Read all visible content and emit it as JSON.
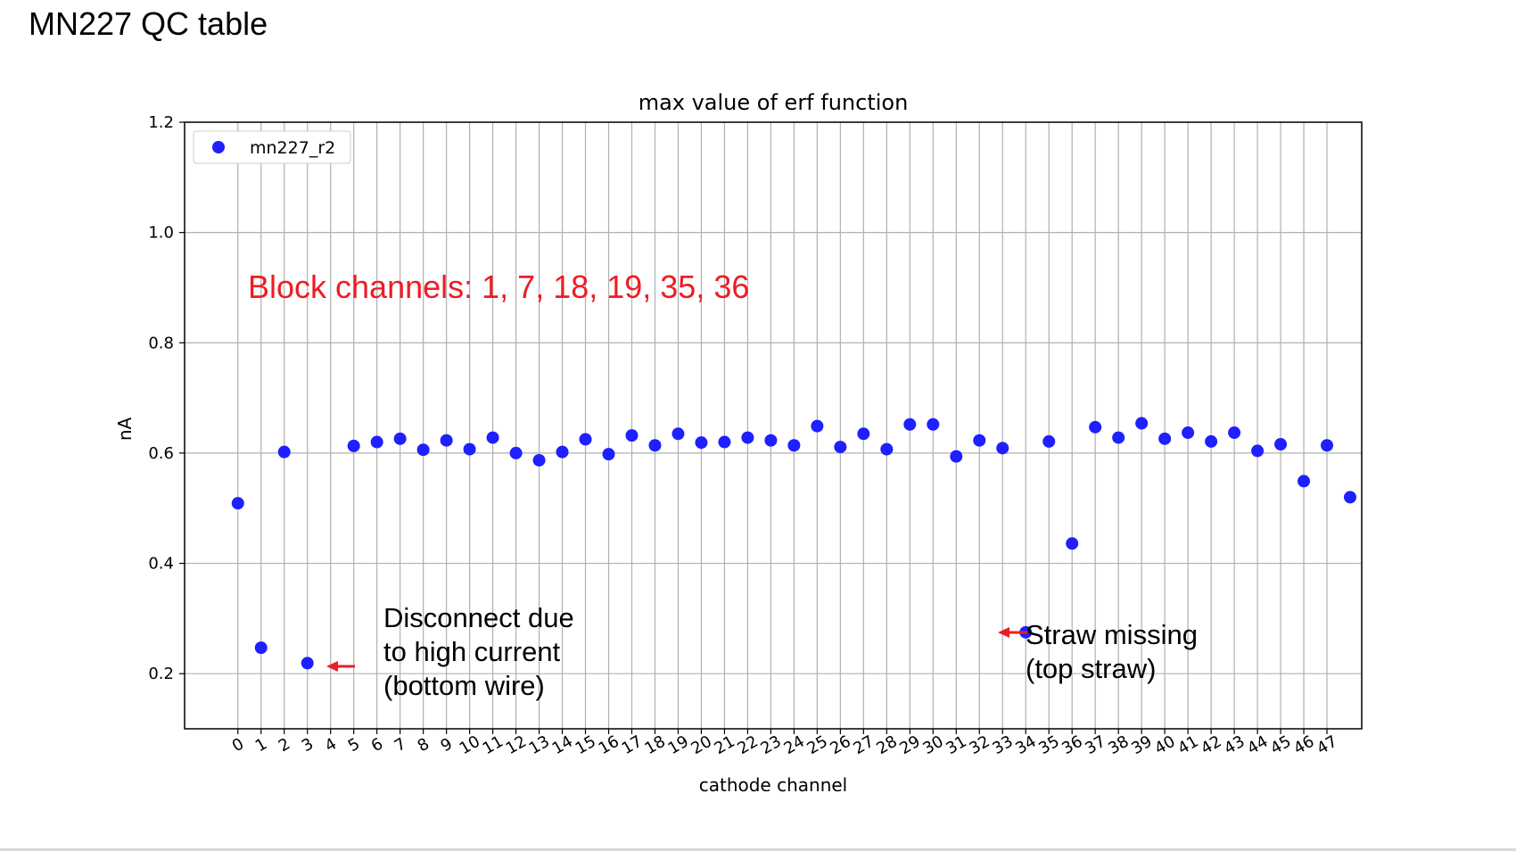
{
  "slide": {
    "title": "MN227 QC table"
  },
  "chart_data": {
    "type": "scatter",
    "title": "max value of erf function",
    "xlabel": "cathode channel",
    "ylabel": "nA",
    "xlim": [
      -2.3,
      48.5
    ],
    "ylim": [
      0.1,
      1.2
    ],
    "y_ticks": [
      0.2,
      0.4,
      0.6,
      0.8,
      1.0,
      1.2
    ],
    "y_tick_labels": [
      "0.2",
      "0.4",
      "0.6",
      "0.8",
      "1.0",
      "1.2"
    ],
    "x": [
      0,
      1,
      2,
      3,
      4,
      5,
      6,
      7,
      8,
      9,
      10,
      11,
      12,
      13,
      14,
      15,
      16,
      17,
      18,
      19,
      20,
      21,
      22,
      23,
      24,
      25,
      26,
      27,
      28,
      29,
      30,
      31,
      32,
      33,
      34,
      35,
      36,
      37,
      38,
      39,
      40,
      41,
      42,
      43,
      44,
      45,
      46,
      47
    ],
    "x_tick_labels": [
      "0",
      "1",
      "2",
      "3",
      "4",
      "5",
      "6",
      "7",
      "8",
      "9",
      "10",
      "11",
      "12",
      "13",
      "14",
      "15",
      "16",
      "17",
      "18",
      "19",
      "20",
      "21",
      "22",
      "23",
      "24",
      "25",
      "26",
      "27",
      "28",
      "29",
      "30",
      "31",
      "32",
      "33",
      "34",
      "35",
      "36",
      "37",
      "38",
      "39",
      "40",
      "41",
      "42",
      "43",
      "44",
      "45",
      "46",
      "47"
    ],
    "grid": true,
    "legend_position": "top-left",
    "marker_color": "#1f1fff",
    "series": [
      {
        "name": "mn227_r2",
        "points": [
          [
            0,
            0.509
          ],
          [
            1,
            0.247
          ],
          [
            2,
            0.602
          ],
          [
            3,
            0.219
          ],
          [
            5,
            0.613
          ],
          [
            6,
            0.62
          ],
          [
            7,
            0.626
          ],
          [
            8,
            0.606
          ],
          [
            9,
            0.623
          ],
          [
            10,
            0.607
          ],
          [
            11,
            0.628
          ],
          [
            12,
            0.6
          ],
          [
            13,
            0.587
          ],
          [
            14,
            0.602
          ],
          [
            15,
            0.625
          ],
          [
            16,
            0.598
          ],
          [
            17,
            0.632
          ],
          [
            18,
            0.614
          ],
          [
            19,
            0.635
          ],
          [
            20,
            0.619
          ],
          [
            21,
            0.62
          ],
          [
            22,
            0.628
          ],
          [
            23,
            0.623
          ],
          [
            24,
            0.614
          ],
          [
            25,
            0.649
          ],
          [
            26,
            0.611
          ],
          [
            27,
            0.635
          ],
          [
            28,
            0.607
          ],
          [
            29,
            0.652
          ],
          [
            30,
            0.652
          ],
          [
            31,
            0.594
          ],
          [
            32,
            0.623
          ],
          [
            33,
            0.609
          ],
          [
            34,
            0.275
          ],
          [
            35,
            0.621
          ],
          [
            36,
            0.436
          ],
          [
            37,
            0.647
          ],
          [
            38,
            0.628
          ],
          [
            39,
            0.654
          ],
          [
            40,
            0.626
          ],
          [
            41,
            0.637
          ],
          [
            42,
            0.621
          ],
          [
            43,
            0.637
          ],
          [
            44,
            0.604
          ],
          [
            45,
            0.616
          ],
          [
            46,
            0.549
          ],
          [
            47,
            0.614
          ],
          [
            48,
            0.52
          ]
        ]
      }
    ],
    "annotations": {
      "block_channels": "Block channels: 1, 7, 18, 19, 35, 36",
      "disconnect": [
        "Disconnect due",
        "to high current",
        "(bottom wire)"
      ],
      "straw_missing": [
        "Straw missing",
        "(top straw)"
      ],
      "text_color": "#ee1c24",
      "arrow_color": "#ee1c24"
    }
  }
}
